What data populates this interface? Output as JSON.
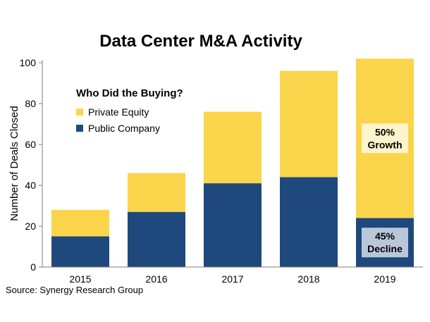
{
  "chart_data": {
    "type": "bar",
    "stacked": true,
    "title": "Data Center M&A Activity",
    "xlabel": "",
    "ylabel": "Number of Deals Closed",
    "ylim": [
      0,
      100
    ],
    "yticks": [
      0,
      20,
      40,
      60,
      80,
      100
    ],
    "grid": false,
    "categories": [
      "2015",
      "2016",
      "2017",
      "2018",
      "2019"
    ],
    "legend": {
      "title": "Who Did the Buying?",
      "placement": "top-left"
    },
    "series": [
      {
        "name": "Public Company",
        "color": "#1F497D",
        "values": [
          15,
          27,
          41,
          44,
          24
        ]
      },
      {
        "name": "Private Equity",
        "color": "#FAD54B",
        "values": [
          13,
          19,
          35,
          52,
          78
        ]
      }
    ],
    "annotations": [
      {
        "category": "2019",
        "series": "Private Equity",
        "lines": [
          "50%",
          "Growth"
        ],
        "fill": "#FFF5CC"
      },
      {
        "category": "2019",
        "series": "Public Company",
        "lines": [
          "45%",
          "Decline"
        ],
        "fill": "#B9C7DA"
      }
    ],
    "source": "Source: Synergy Research Group"
  }
}
